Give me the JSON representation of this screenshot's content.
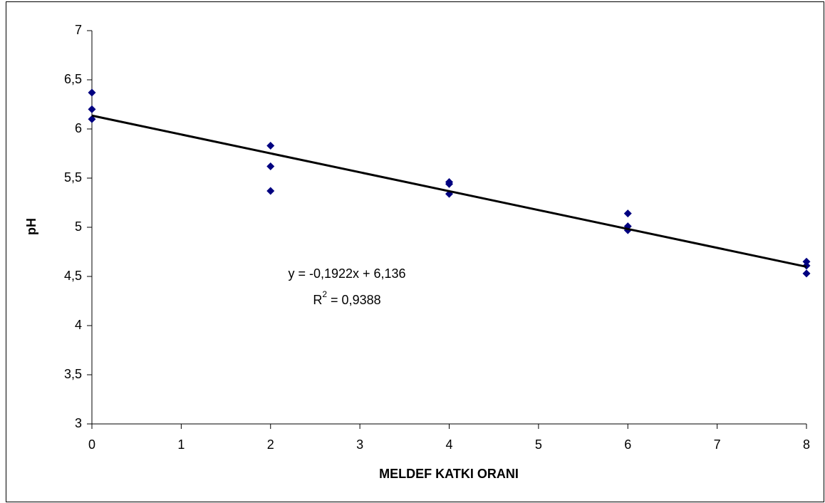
{
  "chart_data": {
    "type": "scatter",
    "x_label": "MELDEF KATKI ORANI",
    "y_label": "pH",
    "xlim": [
      0,
      8
    ],
    "xticks": [
      0,
      1,
      2,
      3,
      4,
      5,
      6,
      7,
      8
    ],
    "ylim": [
      3,
      7
    ],
    "yticks": [
      3,
      {
        "value": 3.5,
        "label": "3,5"
      },
      4,
      {
        "value": 4.5,
        "label": "4,5"
      },
      5,
      {
        "value": 5.5,
        "label": "5,5"
      },
      6,
      {
        "value": 6.5,
        "label": "6,5"
      },
      7
    ],
    "series": [
      {
        "color": "#000080",
        "x": [
          0,
          0,
          0,
          2,
          2,
          2,
          4,
          4,
          4,
          6,
          6,
          6,
          8,
          8,
          8
        ],
        "values": [
          6.37,
          6.2,
          6.1,
          5.83,
          5.62,
          5.37,
          5.46,
          5.44,
          5.34,
          5.14,
          5.01,
          4.97,
          4.65,
          4.61,
          4.53
        ]
      }
    ],
    "trendline": {
      "slope": -0.1922,
      "intercept": 6.136,
      "color": "#000000",
      "equation_label": "y = -0,1922x + 6,136",
      "r2_label": {
        "base": "R",
        "sup": "2",
        "rest": " = 0,9388"
      }
    }
  }
}
